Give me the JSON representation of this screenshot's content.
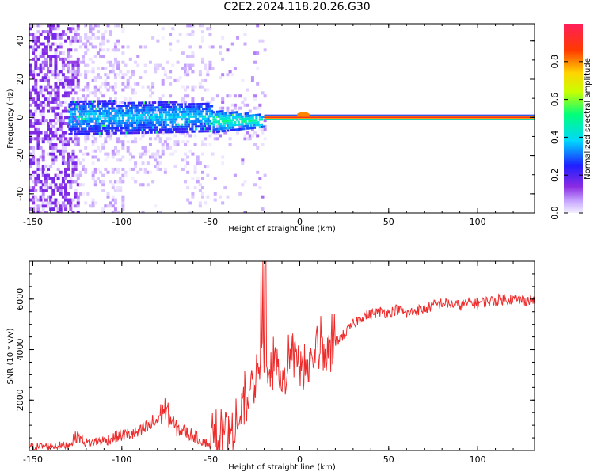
{
  "title": "C2E2.2024.118.20.26.G30",
  "colors": {
    "snr_line": "#ee2b2b",
    "center_band": "#e8242a",
    "axis": "#000000"
  },
  "chart_data": [
    {
      "type": "heatmap",
      "xlabel": "Height of straight line (km)",
      "ylabel": "Frequency (Hz)",
      "xlim": [
        -152,
        132
      ],
      "ylim": [
        -50,
        49
      ],
      "xticks": [
        "-150",
        "-100",
        "-50",
        "0",
        "50",
        "100"
      ],
      "yticks": [
        "-40",
        "-20",
        "0",
        "20",
        "40"
      ],
      "description_values": {
        "colorbar_label": "Normalized spectral amplitude",
        "colorbar_ticks": [
          "0.0",
          "0.2",
          "0.4",
          "0.6",
          "0.8"
        ],
        "colorbar_range": [
          0,
          1
        ],
        "colormap": "rainbow",
        "center_frequency_hz": 0,
        "narrow_band_start_km": -20
      }
    },
    {
      "type": "line",
      "xlabel": "Height of straight line (km)",
      "ylabel": "SNR (10 * v/v)",
      "xlim": [
        -152,
        132
      ],
      "ylim": [
        0,
        7500
      ],
      "xticks": [
        "-150",
        "-100",
        "-50",
        "0",
        "50",
        "100"
      ],
      "yticks": [
        "2000",
        "4000",
        "6000"
      ],
      "series": [
        {
          "x": [
            -152,
            -140,
            -130,
            -125,
            -120,
            -110,
            -100,
            -90,
            -80,
            -76,
            -70,
            -60,
            -50,
            -45,
            -40,
            -35,
            -30,
            -25,
            -22,
            -20,
            -18,
            -15,
            -10,
            -5,
            0,
            5,
            10,
            15,
            20,
            25,
            30,
            35,
            40,
            45,
            50,
            55,
            60,
            65,
            70,
            75,
            80,
            85,
            90,
            95,
            100,
            105,
            110,
            115,
            120,
            125,
            132
          ],
          "y": [
            150,
            180,
            200,
            600,
            300,
            400,
            600,
            700,
            1200,
            1700,
            900,
            600,
            200,
            350,
            600,
            1100,
            1900,
            2800,
            3300,
            3700,
            2700,
            3200,
            2500,
            3900,
            3200,
            3300,
            4100,
            3700,
            4300,
            4600,
            5000,
            5300,
            5400,
            5500,
            5450,
            5600,
            5400,
            5550,
            5600,
            5750,
            5850,
            5800,
            5750,
            5850,
            5850,
            5900,
            5950,
            6000,
            6000,
            5950,
            5950
          ]
        }
      ]
    }
  ]
}
